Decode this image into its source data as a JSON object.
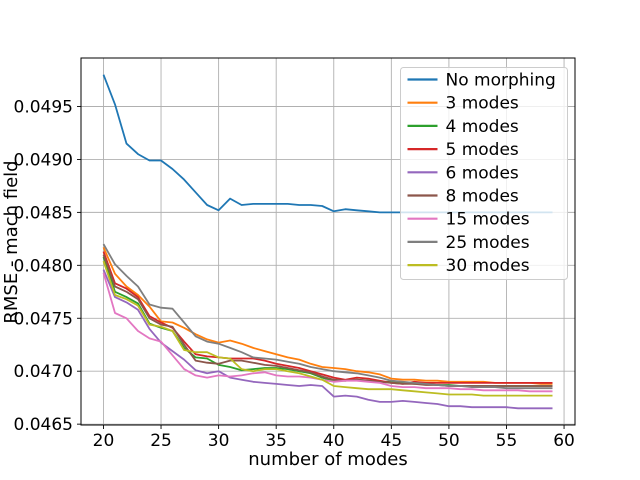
{
  "chart_data": {
    "type": "line",
    "title": "",
    "xlabel": "number of modes",
    "ylabel": "RMSE - mach field",
    "grid": true,
    "grid_color": "#b0b0b0",
    "axis_color": "#000000",
    "background": "#ffffff",
    "legend_position": "upper right",
    "xlim": [
      18.05,
      60.95
    ],
    "ylim": [
      0.046492,
      0.049958
    ],
    "xticks": [
      20,
      25,
      30,
      35,
      40,
      45,
      50,
      55,
      60
    ],
    "xtick_labels": [
      "20",
      "25",
      "30",
      "35",
      "40",
      "45",
      "50",
      "55",
      "60"
    ],
    "yticks": [
      0.0465,
      0.047,
      0.0475,
      0.048,
      0.0485,
      0.049,
      0.0495
    ],
    "ytick_labels": [
      "0.0465",
      "0.0470",
      "0.0475",
      "0.0480",
      "0.0485",
      "0.0490",
      "0.0495"
    ],
    "x": [
      20,
      21,
      22,
      23,
      24,
      25,
      26,
      27,
      28,
      29,
      30,
      31,
      32,
      33,
      34,
      35,
      36,
      37,
      38,
      39,
      40,
      41,
      42,
      43,
      44,
      45,
      46,
      47,
      48,
      49,
      50,
      51,
      52,
      53,
      54,
      55,
      56,
      57,
      58,
      59
    ],
    "series": [
      {
        "name": "No morphing",
        "color": "#1f77b4",
        "values": [
          0.0498,
          0.04952,
          0.04915,
          0.04905,
          0.04899,
          0.04899,
          0.04891,
          0.04881,
          0.04869,
          0.04857,
          0.04852,
          0.04863,
          0.04857,
          0.04858,
          0.04858,
          0.04858,
          0.04858,
          0.04857,
          0.04857,
          0.04856,
          0.04851,
          0.04853,
          0.04852,
          0.04851,
          0.0485,
          0.0485,
          0.0485,
          0.0485,
          0.0485,
          0.0485,
          0.0485,
          0.0485,
          0.0485,
          0.0485,
          0.0485,
          0.0485,
          0.0485,
          0.0485,
          0.0485,
          0.0485
        ]
      },
      {
        "name": "3 modes",
        "color": "#ff7f0e",
        "values": [
          0.04817,
          0.04792,
          0.0478,
          0.04772,
          0.04761,
          0.04747,
          0.04746,
          0.04741,
          0.04735,
          0.0473,
          0.04727,
          0.04729,
          0.04726,
          0.04722,
          0.04719,
          0.04716,
          0.04713,
          0.04711,
          0.04707,
          0.04704,
          0.04703,
          0.04702,
          0.047,
          0.04699,
          0.04697,
          0.04693,
          0.04692,
          0.04692,
          0.04691,
          0.04691,
          0.0469,
          0.0469,
          0.0469,
          0.0469,
          0.04689,
          0.04689,
          0.04689,
          0.04689,
          0.04688,
          0.04688
        ]
      },
      {
        "name": "4 modes",
        "color": "#2ca02c",
        "values": [
          0.04808,
          0.04775,
          0.0477,
          0.04764,
          0.04745,
          0.04741,
          0.04738,
          0.04722,
          0.04713,
          0.04712,
          0.04706,
          0.04704,
          0.04701,
          0.04702,
          0.04703,
          0.04703,
          0.04702,
          0.047,
          0.04698,
          0.04694,
          0.04691,
          0.04691,
          0.04692,
          0.04691,
          0.0469,
          0.0469,
          0.04689,
          0.04688,
          0.04688,
          0.04687,
          0.04687,
          0.04686,
          0.04686,
          0.04686,
          0.04686,
          0.04686,
          0.04686,
          0.04686,
          0.04686,
          0.04686
        ]
      },
      {
        "name": "5 modes",
        "color": "#d62728",
        "values": [
          0.04813,
          0.04783,
          0.04778,
          0.0477,
          0.04752,
          0.04746,
          0.04741,
          0.04728,
          0.04716,
          0.04714,
          0.04713,
          0.04712,
          0.04712,
          0.04712,
          0.0471,
          0.04707,
          0.04705,
          0.04703,
          0.047,
          0.04697,
          0.04694,
          0.04692,
          0.04694,
          0.04693,
          0.04691,
          0.04689,
          0.04688,
          0.0469,
          0.04689,
          0.04689,
          0.04689,
          0.04689,
          0.04689,
          0.04689,
          0.04689,
          0.04689,
          0.04689,
          0.04689,
          0.04689,
          0.04689
        ]
      },
      {
        "name": "6 modes",
        "color": "#9467bd",
        "values": [
          0.04796,
          0.0477,
          0.04765,
          0.04758,
          0.0474,
          0.04727,
          0.04719,
          0.04711,
          0.04701,
          0.04698,
          0.047,
          0.04694,
          0.04692,
          0.0469,
          0.04689,
          0.04688,
          0.04687,
          0.04686,
          0.04687,
          0.04686,
          0.04676,
          0.04677,
          0.04676,
          0.04673,
          0.04671,
          0.04671,
          0.04672,
          0.04671,
          0.0467,
          0.04669,
          0.04667,
          0.04667,
          0.04666,
          0.04666,
          0.04666,
          0.04666,
          0.04665,
          0.04665,
          0.04665,
          0.04665
        ]
      },
      {
        "name": "8 modes",
        "color": "#8c564b",
        "values": [
          0.0481,
          0.0478,
          0.04775,
          0.04768,
          0.0475,
          0.04744,
          0.04742,
          0.04725,
          0.0471,
          0.04708,
          0.04707,
          0.0471,
          0.0471,
          0.04708,
          0.04706,
          0.04705,
          0.04703,
          0.04701,
          0.04699,
          0.04695,
          0.04692,
          0.04691,
          0.04692,
          0.04691,
          0.0469,
          0.04689,
          0.04688,
          0.04688,
          0.04687,
          0.04687,
          0.04686,
          0.04686,
          0.04686,
          0.04686,
          0.04686,
          0.04686,
          0.04686,
          0.04686,
          0.04686,
          0.04686
        ]
      },
      {
        "name": "15 modes",
        "color": "#e377c2",
        "values": [
          0.04793,
          0.04755,
          0.0475,
          0.04738,
          0.04731,
          0.04728,
          0.04715,
          0.04702,
          0.04696,
          0.04694,
          0.04696,
          0.04695,
          0.04696,
          0.04698,
          0.04699,
          0.04696,
          0.04695,
          0.04695,
          0.04694,
          0.04692,
          0.0469,
          0.04691,
          0.04691,
          0.0469,
          0.04689,
          0.04686,
          0.04685,
          0.04685,
          0.04684,
          0.04684,
          0.04684,
          0.04683,
          0.04683,
          0.04682,
          0.04682,
          0.04682,
          0.04682,
          0.04681,
          0.04681,
          0.04681
        ]
      },
      {
        "name": "25 modes",
        "color": "#7f7f7f",
        "values": [
          0.0482,
          0.04801,
          0.0479,
          0.0478,
          0.04763,
          0.0476,
          0.04759,
          0.04746,
          0.04733,
          0.04728,
          0.04726,
          0.04722,
          0.04718,
          0.04713,
          0.04712,
          0.04711,
          0.04709,
          0.04707,
          0.04704,
          0.04702,
          0.047,
          0.04699,
          0.04698,
          0.04696,
          0.04694,
          0.04691,
          0.0469,
          0.04689,
          0.04688,
          0.04687,
          0.04686,
          0.04686,
          0.04685,
          0.04685,
          0.04685,
          0.04684,
          0.04684,
          0.04684,
          0.04684,
          0.04684
        ]
      },
      {
        "name": "30 modes",
        "color": "#bcbd22",
        "values": [
          0.04804,
          0.04772,
          0.04768,
          0.04762,
          0.04744,
          0.04742,
          0.04738,
          0.0472,
          0.04718,
          0.04718,
          0.04713,
          0.04712,
          0.04702,
          0.047,
          0.04702,
          0.04702,
          0.047,
          0.04698,
          0.04695,
          0.04692,
          0.04686,
          0.04685,
          0.04684,
          0.04683,
          0.04683,
          0.04683,
          0.04682,
          0.04681,
          0.0468,
          0.04679,
          0.04678,
          0.04678,
          0.04678,
          0.04677,
          0.04677,
          0.04677,
          0.04677,
          0.04677,
          0.04677,
          0.04677
        ]
      }
    ],
    "legend": {
      "labels": [
        "No morphing",
        "3 modes",
        "4 modes",
        "5 modes",
        "6 modes",
        "8 modes",
        "15 modes",
        "25 modes",
        "30 modes"
      ],
      "background": "rgba(255,255,255,0.8)",
      "border_color": "#cccccc"
    }
  }
}
